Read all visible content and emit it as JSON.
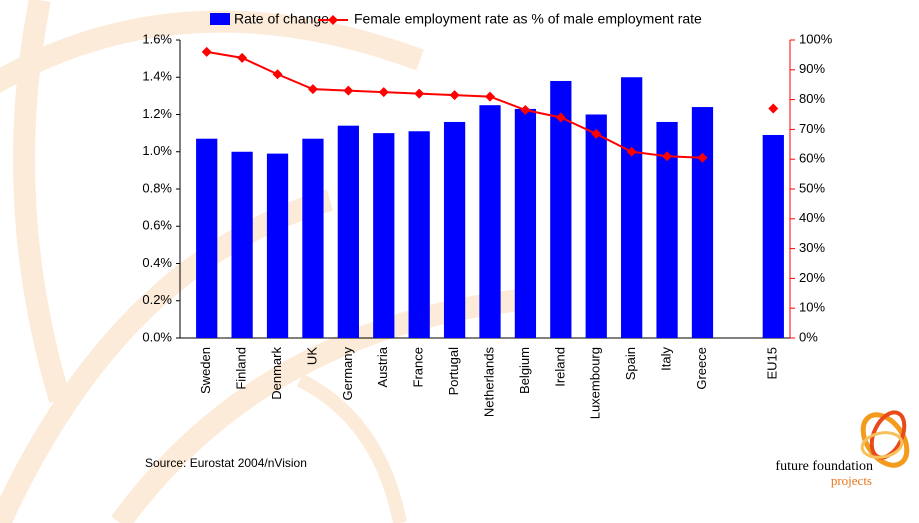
{
  "chart_data": {
    "type": "bar",
    "categories": [
      "Sweden",
      "Finland",
      "Denmark",
      "UK",
      "Germany",
      "Austria",
      "France",
      "Portugal",
      "Netherlands",
      "Belgium",
      "Ireland",
      "Luxembourg",
      "Spain",
      "Italy",
      "Greece",
      null,
      "EU15"
    ],
    "series": [
      {
        "name": "Rate of change",
        "type": "bar",
        "color": "#0000ff",
        "values": [
          1.07,
          1.0,
          0.99,
          1.07,
          1.14,
          1.1,
          1.11,
          1.16,
          1.25,
          1.23,
          1.38,
          1.2,
          1.4,
          1.16,
          1.24,
          null,
          1.09
        ]
      },
      {
        "name": "Female employment rate as % of male employment rate",
        "type": "line",
        "axis": "y2",
        "color": "#ff0000",
        "marker": "diamond",
        "values": [
          96,
          94,
          88.5,
          83.5,
          83,
          82.5,
          82,
          81.5,
          81,
          76.5,
          74,
          68.5,
          62.5,
          61,
          60.5,
          null,
          77
        ]
      }
    ],
    "ylim": [
      0,
      1.6
    ],
    "yticks": [
      {
        "value": 0,
        "label": "0.0%"
      },
      {
        "value": 0.2,
        "label": "0.2%"
      },
      {
        "value": 0.4,
        "label": "0.4%"
      },
      {
        "value": 0.6,
        "label": "0.6%"
      },
      {
        "value": 0.8,
        "label": "0.8%"
      },
      {
        "value": 1.0,
        "label": "1.0%"
      },
      {
        "value": 1.2,
        "label": "1.2%"
      },
      {
        "value": 1.4,
        "label": "1.4%"
      },
      {
        "value": 1.6,
        "label": "1.6%"
      }
    ],
    "y2lim": [
      0,
      100
    ],
    "y2ticks": [
      {
        "value": 0,
        "label": "0%"
      },
      {
        "value": 10,
        "label": "10%"
      },
      {
        "value": 20,
        "label": "20%"
      },
      {
        "value": 30,
        "label": "30%"
      },
      {
        "value": 40,
        "label": "40%"
      },
      {
        "value": 50,
        "label": "50%"
      },
      {
        "value": 60,
        "label": "60%"
      },
      {
        "value": 70,
        "label": "70%"
      },
      {
        "value": 80,
        "label": "80%"
      },
      {
        "value": 90,
        "label": "90%"
      },
      {
        "value": 100,
        "label": "100%"
      }
    ],
    "y2_color": "#ff0000",
    "grid": false,
    "legend": "top",
    "source": "Source: Eurostat 2004/nVision",
    "logo": {
      "name": "future foundation",
      "tagline": "projects"
    }
  }
}
